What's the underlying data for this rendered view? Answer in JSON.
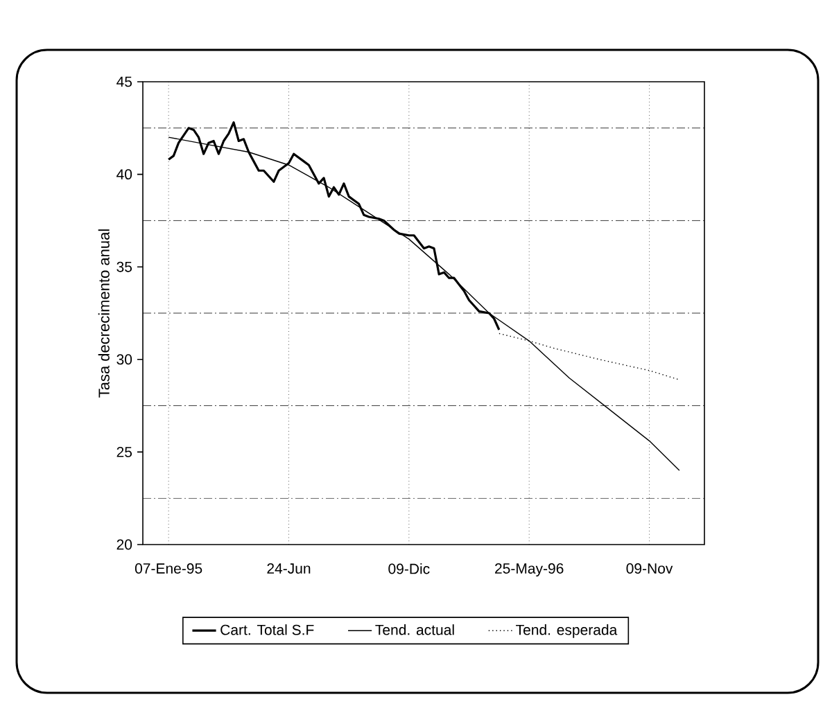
{
  "chart_data": {
    "type": "line",
    "ylabel": "Tasa decrecimento anual",
    "xlim": [
      "1994-12-02",
      "1997-01-25"
    ],
    "xticks": [
      {
        "value": "1995-01-07",
        "label": "07-Ene-95"
      },
      {
        "value": "1995-06-24",
        "label": "24-Jun"
      },
      {
        "value": "1995-12-09",
        "label": "09-Dic"
      },
      {
        "value": "1996-05-25",
        "label": "25-May-96"
      },
      {
        "value": "1996-11-09",
        "label": "09-Nov"
      }
    ],
    "ylim": [
      20,
      45
    ],
    "yticks": [
      20,
      25,
      30,
      35,
      40,
      45
    ],
    "grid": "x",
    "legend": "bottom",
    "marker": "none",
    "ref_lines": [
      {
        "axis": "y",
        "value": 22.5,
        "line_style": "dashed"
      },
      {
        "axis": "y",
        "value": 27.5,
        "line_style": "dashed"
      },
      {
        "axis": "y",
        "value": 32.5,
        "line_style": "dashed"
      },
      {
        "axis": "y",
        "value": 37.5,
        "line_style": "dashed"
      },
      {
        "axis": "y",
        "value": 42.5,
        "line_style": "dashed"
      }
    ],
    "series": [
      {
        "name": "Cart. Total S.F",
        "color": "#000000",
        "line_style": "solid",
        "x": [
          "1995-01-07",
          "1995-01-14",
          "1995-01-21",
          "1995-02-04",
          "1995-02-11",
          "1995-02-18",
          "1995-02-25",
          "1995-03-04",
          "1995-03-11",
          "1995-03-18",
          "1995-03-25",
          "1995-04-01",
          "1995-04-08",
          "1995-04-15",
          "1995-04-22",
          "1995-04-29",
          "1995-05-06",
          "1995-05-13",
          "1995-05-20",
          "1995-06-03",
          "1995-06-10",
          "1995-06-24",
          "1995-07-01",
          "1995-07-15",
          "1995-07-22",
          "1995-08-05",
          "1995-08-12",
          "1995-08-19",
          "1995-08-26",
          "1995-09-02",
          "1995-09-09",
          "1995-09-16",
          "1995-09-30",
          "1995-10-07",
          "1995-10-14",
          "1995-10-28",
          "1995-11-04",
          "1995-11-18",
          "1995-11-25",
          "1995-12-09",
          "1995-12-16",
          "1995-12-30",
          "1996-01-06",
          "1996-01-13",
          "1996-01-20",
          "1996-01-27",
          "1996-02-03",
          "1996-02-10",
          "1996-02-24",
          "1996-03-02",
          "1996-03-09",
          "1996-03-16",
          "1996-03-30",
          "1996-04-06",
          "1996-04-13"
        ],
        "values": [
          40.8,
          41.0,
          41.7,
          42.5,
          42.4,
          42.0,
          41.1,
          41.7,
          41.8,
          41.1,
          41.8,
          42.2,
          42.8,
          41.8,
          41.9,
          41.2,
          40.7,
          40.2,
          40.2,
          39.6,
          40.2,
          40.6,
          41.1,
          40.7,
          40.5,
          39.5,
          39.8,
          38.8,
          39.3,
          38.9,
          39.5,
          38.8,
          38.4,
          37.8,
          37.7,
          37.6,
          37.5,
          37.0,
          36.8,
          36.7,
          36.7,
          36.0,
          36.1,
          36.0,
          34.6,
          34.7,
          34.4,
          34.4,
          33.7,
          33.2,
          32.9,
          32.6,
          32.5,
          32.2,
          31.6
        ]
      },
      {
        "name": "Tend. actual",
        "color": "#000000",
        "line_style": "solid",
        "x": [
          "1995-01-07",
          "1995-03-04",
          "1995-04-29",
          "1995-06-24",
          "1995-08-19",
          "1995-10-14",
          "1995-12-09",
          "1996-02-03",
          "1996-03-30",
          "1996-05-25",
          "1996-07-20",
          "1996-09-14",
          "1996-11-09",
          "1996-12-21"
        ],
        "values": [
          42.0,
          41.6,
          41.2,
          40.5,
          39.3,
          37.9,
          36.5,
          34.6,
          32.5,
          31.0,
          29.0,
          27.3,
          25.6,
          24.0
        ]
      },
      {
        "name": "Tend. esperada",
        "color": "#000000",
        "line_style": "dotted",
        "x": [
          "1996-04-13",
          "1996-05-25",
          "1996-06-29",
          "1996-08-31",
          "1996-11-09",
          "1996-12-21"
        ],
        "values": [
          31.4,
          31.0,
          30.6,
          30.0,
          29.4,
          28.9
        ]
      }
    ]
  }
}
